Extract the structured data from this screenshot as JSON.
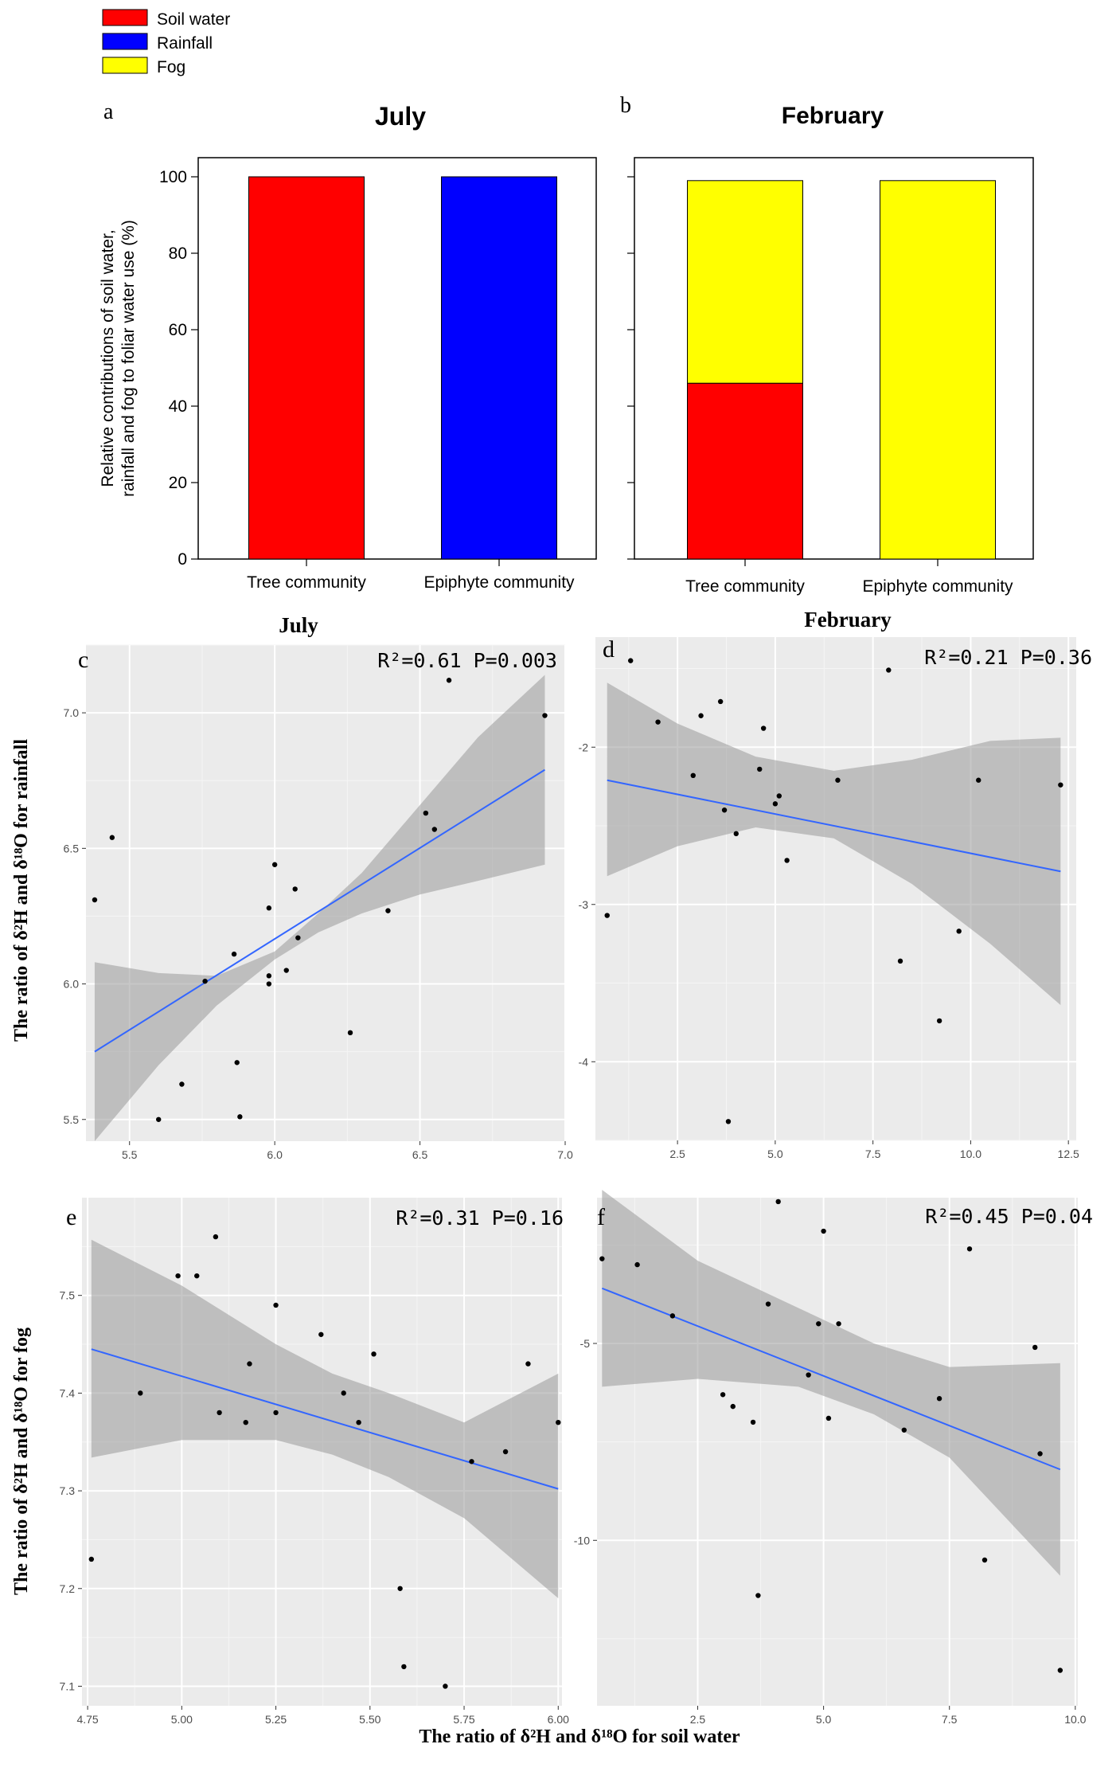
{
  "legend": {
    "entries": [
      {
        "label": "Soil water",
        "color": "#ff0000"
      },
      {
        "label": "Rainfall",
        "color": "#0000ff"
      },
      {
        "label": "Fog",
        "color": "#ffff00"
      }
    ]
  },
  "y_axis_label_ab": [
    "Relative contributions of soil water,",
    "rainfall and fog to foliar water use (%)"
  ],
  "y_axis_label_cd": "The ratio of δ²H and δ¹⁸O for rainfall",
  "y_axis_label_ef": "The ratio of δ²H and δ¹⁸O for fog",
  "x_axis_label_ef": "The ratio of δ²H and δ¹⁸O for soil water",
  "regression_color": "#3366ff",
  "chart_data": [
    {
      "panel": "a",
      "type": "bar",
      "title": "July",
      "categories": [
        "Tree community",
        "Epiphyte community"
      ],
      "series": [
        {
          "name": "Soil water",
          "values": [
            100,
            0
          ]
        },
        {
          "name": "Rainfall",
          "values": [
            0,
            100
          ]
        },
        {
          "name": "Fog",
          "values": [
            0,
            0
          ]
        }
      ],
      "ylim": [
        0,
        105
      ],
      "yticks": [
        0,
        20,
        40,
        60,
        80,
        100
      ]
    },
    {
      "panel": "b",
      "type": "bar",
      "title": "February",
      "categories": [
        "Tree community",
        "Epiphyte community"
      ],
      "series": [
        {
          "name": "Soil water",
          "values": [
            46,
            0
          ]
        },
        {
          "name": "Rainfall",
          "values": [
            0,
            0
          ]
        },
        {
          "name": "Fog",
          "values": [
            53,
            99
          ]
        }
      ],
      "ylim": [
        0,
        105
      ],
      "yticks": [
        0,
        20,
        40,
        60,
        80,
        100
      ]
    },
    {
      "panel": "c",
      "type": "scatter",
      "title": "July",
      "annotation": "R²=0.61 P=0.003",
      "xlim": [
        5.35,
        7.0
      ],
      "ylim": [
        5.42,
        7.25
      ],
      "xticks": [
        5.5,
        6.0,
        6.5,
        7.0
      ],
      "xticklabels": [
        "5.5",
        "6.0",
        "6.5",
        "7.0"
      ],
      "yticks": [
        5.5,
        6.0,
        6.5,
        7.0
      ],
      "yticklabels": [
        "5.5",
        "6.0",
        "6.5",
        "7.0"
      ],
      "points": [
        [
          5.38,
          6.31
        ],
        [
          5.44,
          6.54
        ],
        [
          5.6,
          5.5
        ],
        [
          5.68,
          5.63
        ],
        [
          5.76,
          6.01
        ],
        [
          5.86,
          6.11
        ],
        [
          5.87,
          5.71
        ],
        [
          5.88,
          5.51
        ],
        [
          5.98,
          6.03
        ],
        [
          5.98,
          6.0
        ],
        [
          5.98,
          6.28
        ],
        [
          6.0,
          6.44
        ],
        [
          6.04,
          6.05
        ],
        [
          6.07,
          6.35
        ],
        [
          6.08,
          6.17
        ],
        [
          6.26,
          5.82
        ],
        [
          6.39,
          6.27
        ],
        [
          6.52,
          6.63
        ],
        [
          6.55,
          6.57
        ],
        [
          6.6,
          7.12
        ],
        [
          6.93,
          6.99
        ]
      ],
      "fit": {
        "x": [
          5.38,
          6.93
        ],
        "y": [
          5.75,
          6.79
        ]
      },
      "ci": {
        "x": [
          5.38,
          5.6,
          5.8,
          6.0,
          6.15,
          6.3,
          6.5,
          6.7,
          6.93
        ],
        "lower": [
          5.42,
          5.7,
          5.92,
          6.09,
          6.19,
          6.26,
          6.33,
          6.38,
          6.44
        ],
        "upper": [
          6.08,
          6.04,
          6.03,
          6.12,
          6.26,
          6.41,
          6.66,
          6.91,
          7.14
        ]
      }
    },
    {
      "panel": "d",
      "type": "scatter",
      "title": "February",
      "annotation": "R²=0.21 P=0.36",
      "xlim": [
        0.4,
        12.7
      ],
      "ylim": [
        -4.5,
        -1.3
      ],
      "xticks": [
        2.5,
        5.0,
        7.5,
        10.0,
        12.5
      ],
      "xticklabels": [
        "2.5",
        "5.0",
        "7.5",
        "10.0",
        "12.5"
      ],
      "yticks": [
        -4,
        -3,
        -2
      ],
      "yticklabels": [
        "-4",
        "-3",
        "-2"
      ],
      "points": [
        [
          0.7,
          -3.07
        ],
        [
          1.3,
          -1.45
        ],
        [
          2.0,
          -1.84
        ],
        [
          2.9,
          -2.18
        ],
        [
          3.1,
          -1.8
        ],
        [
          3.6,
          -1.71
        ],
        [
          3.7,
          -2.4
        ],
        [
          3.8,
          -4.38
        ],
        [
          4.0,
          -2.55
        ],
        [
          4.6,
          -2.14
        ],
        [
          4.7,
          -1.88
        ],
        [
          5.0,
          -2.36
        ],
        [
          5.1,
          -2.31
        ],
        [
          5.3,
          -2.72
        ],
        [
          6.6,
          -2.21
        ],
        [
          7.9,
          -1.51
        ],
        [
          8.2,
          -3.36
        ],
        [
          9.2,
          -3.74
        ],
        [
          9.7,
          -3.17
        ],
        [
          10.2,
          -2.21
        ],
        [
          12.3,
          -2.24
        ]
      ],
      "fit": {
        "x": [
          0.7,
          12.3
        ],
        "y": [
          -2.21,
          -2.79
        ]
      },
      "ci": {
        "x": [
          0.7,
          2.5,
          4.5,
          6.5,
          8.5,
          10.5,
          12.3
        ],
        "lower": [
          -2.82,
          -2.63,
          -2.51,
          -2.58,
          -2.87,
          -3.25,
          -3.64
        ],
        "upper": [
          -1.59,
          -1.85,
          -2.06,
          -2.15,
          -2.08,
          -1.96,
          -1.94
        ]
      }
    },
    {
      "panel": "e",
      "type": "scatter",
      "annotation": "R²=0.31 P=0.16",
      "xlim": [
        4.735,
        6.01
      ],
      "ylim": [
        7.08,
        7.6
      ],
      "xticks": [
        4.75,
        5.0,
        5.25,
        5.5,
        5.75,
        6.0
      ],
      "xticklabels": [
        "4.75",
        "5.00",
        "5.25",
        "5.50",
        "5.75",
        "6.00"
      ],
      "yticks": [
        7.1,
        7.2,
        7.3,
        7.4,
        7.5
      ],
      "yticklabels": [
        "7.1",
        "7.2",
        "7.3",
        "7.4",
        "7.5"
      ],
      "points": [
        [
          4.76,
          7.23
        ],
        [
          4.89,
          7.4
        ],
        [
          4.99,
          7.52
        ],
        [
          5.04,
          7.52
        ],
        [
          5.09,
          7.56
        ],
        [
          5.1,
          7.38
        ],
        [
          5.17,
          7.37
        ],
        [
          5.18,
          7.43
        ],
        [
          5.25,
          7.49
        ],
        [
          5.25,
          7.38
        ],
        [
          5.37,
          7.46
        ],
        [
          5.43,
          7.4
        ],
        [
          5.47,
          7.37
        ],
        [
          5.51,
          7.44
        ],
        [
          5.58,
          7.2
        ],
        [
          5.59,
          7.12
        ],
        [
          5.7,
          7.1
        ],
        [
          5.77,
          7.33
        ],
        [
          5.86,
          7.34
        ],
        [
          5.92,
          7.43
        ],
        [
          6.0,
          7.37
        ]
      ],
      "fit": {
        "x": [
          4.76,
          6.0
        ],
        "y": [
          7.445,
          7.302
        ]
      },
      "ci": {
        "x": [
          4.76,
          5.0,
          5.25,
          5.4,
          5.55,
          5.75,
          6.0
        ],
        "lower": [
          7.334,
          7.352,
          7.352,
          7.337,
          7.314,
          7.272,
          7.19
        ],
        "upper": [
          7.557,
          7.51,
          7.45,
          7.42,
          7.4,
          7.37,
          7.42
        ]
      }
    },
    {
      "panel": "f",
      "type": "scatter",
      "annotation": "R²=0.45 P=0.04",
      "xlim": [
        0.5,
        10.05
      ],
      "ylim": [
        -14.2,
        -1.3
      ],
      "xticks": [
        2.5,
        5.0,
        7.5,
        10.0
      ],
      "xticklabels": [
        "2.5",
        "5.0",
        "7.5",
        "10.0"
      ],
      "yticks": [
        -10,
        -5
      ],
      "yticklabels": [
        "-10",
        "-5"
      ],
      "points": [
        [
          0.6,
          -2.85
        ],
        [
          1.3,
          -3.0
        ],
        [
          2.0,
          -4.3
        ],
        [
          3.0,
          -6.3
        ],
        [
          3.2,
          -6.6
        ],
        [
          3.6,
          -7.0
        ],
        [
          3.7,
          -11.4
        ],
        [
          3.9,
          -4.0
        ],
        [
          4.1,
          -1.4
        ],
        [
          4.7,
          -5.8
        ],
        [
          4.9,
          -4.5
        ],
        [
          5.0,
          -2.15
        ],
        [
          5.1,
          -6.9
        ],
        [
          5.3,
          -4.5
        ],
        [
          6.6,
          -7.2
        ],
        [
          7.3,
          -6.4
        ],
        [
          7.9,
          -2.6
        ],
        [
          8.2,
          -10.5
        ],
        [
          9.2,
          -5.1
        ],
        [
          9.3,
          -7.8
        ],
        [
          9.7,
          -13.3
        ]
      ],
      "fit": {
        "x": [
          0.6,
          9.7
        ],
        "y": [
          -3.6,
          -8.2
        ]
      },
      "ci": {
        "x": [
          0.6,
          2.5,
          4.5,
          6.0,
          7.5,
          9.7
        ],
        "lower": [
          -6.1,
          -5.9,
          -6.1,
          -6.8,
          -7.9,
          -10.9
        ],
        "upper": [
          -1.1,
          -2.9,
          -4.1,
          -5.0,
          -5.6,
          -5.5
        ]
      }
    }
  ]
}
